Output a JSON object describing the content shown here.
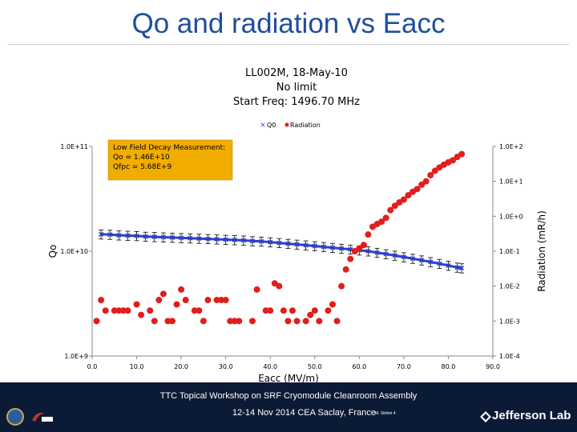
{
  "slide": {
    "title": "Qo and radiation vs Eacc",
    "footer_line1": "TTC Topical Workshop on SRF Cryomodule Cleanroom Assembly",
    "footer_line2": "12-14 Nov 2014 CEA Saclay, France",
    "footer_author": "M. Stirbet 4",
    "footer_brand": "Jefferson Lab"
  },
  "chart_data": {
    "type": "scatter",
    "title_lines": [
      "LL002M, 18-May-10",
      "No limit",
      "Start Freq: 1496.70 MHz"
    ],
    "xlabel": "Eacc (MV/m)",
    "ylabel_left": "Qo",
    "ylabel_right": "Radiation (mR/h)",
    "x_ticks": [
      "0.0",
      "10.0",
      "20.0",
      "30.0",
      "40.0",
      "50.0",
      "60.0",
      "70.0",
      "80.0",
      "90.0"
    ],
    "xlim": [
      0,
      90
    ],
    "left_axis": {
      "scale": "log",
      "ylim": [
        1000000000.0,
        100000000000.0
      ],
      "ticks": [
        "1.0E+9",
        "1.0E+10",
        "1.0E+11"
      ]
    },
    "right_axis": {
      "scale": "log",
      "ylim": [
        0.0001,
        100
      ],
      "ticks": [
        "1.0E-4",
        "1.0E-3",
        "1.0E-2",
        "1.0E-1",
        "1.0E+0",
        "1.0E+1",
        "1.0E+2"
      ]
    },
    "legend": {
      "position": "top",
      "entries": [
        "Q0",
        "Radiation"
      ]
    },
    "annotation": [
      "Low Field Decay Measurement:",
      "Qo = 1.46E+10",
      "Qfpc = 5.68E+9"
    ],
    "colors": {
      "qo": "#2e3fcc",
      "radiation": "#e01e1e",
      "annotation_bg": "#f0ad00",
      "title": "#1f4e9c"
    },
    "series": [
      {
        "name": "Q0",
        "axis": "left",
        "error_bar_fraction": 0.1,
        "x": [
          2,
          4,
          6,
          8,
          10,
          12,
          14,
          16,
          18,
          20,
          22,
          24,
          26,
          28,
          30,
          32,
          34,
          36,
          38,
          40,
          42,
          44,
          46,
          48,
          50,
          52,
          54,
          56,
          58,
          60,
          62,
          64,
          66,
          68,
          70,
          72,
          74,
          76,
          78,
          80,
          82,
          83
        ],
        "y": [
          14500000000.0,
          14400000000.0,
          14200000000.0,
          14100000000.0,
          14000000000.0,
          13800000000.0,
          13700000000.0,
          13600000000.0,
          13500000000.0,
          13400000000.0,
          13300000000.0,
          13200000000.0,
          13100000000.0,
          13000000000.0,
          12900000000.0,
          12800000000.0,
          12700000000.0,
          12500000000.0,
          12400000000.0,
          12200000000.0,
          12000000000.0,
          11800000000.0,
          11600000000.0,
          11400000000.0,
          11200000000.0,
          11000000000.0,
          10800000000.0,
          10600000000.0,
          10400000000.0,
          10200000000.0,
          10000000000.0,
          9700000000.0,
          9400000000.0,
          9100000000.0,
          8800000000.0,
          8500000000.0,
          8200000000.0,
          7900000000.0,
          7600000000.0,
          7300000000.0,
          7000000000.0,
          6900000000.0
        ]
      },
      {
        "name": "Radiation",
        "axis": "right",
        "x": [
          1,
          2,
          3,
          5,
          6,
          7,
          8,
          10,
          11,
          13,
          14,
          15,
          16,
          17,
          18,
          19,
          20,
          21,
          23,
          24,
          25,
          26,
          28,
          29,
          30,
          31,
          32,
          33,
          36,
          37,
          39,
          40,
          41,
          42,
          43,
          44,
          45,
          46,
          48,
          49,
          50,
          51,
          53,
          54,
          55,
          56,
          57,
          58,
          59,
          60,
          61,
          62,
          63,
          64,
          65,
          66,
          67,
          68,
          69,
          70,
          71,
          72,
          73,
          74,
          75,
          76,
          77,
          78,
          79,
          80,
          81,
          82,
          83
        ],
        "y": [
          0.001,
          0.004,
          0.002,
          0.002,
          0.002,
          0.002,
          0.002,
          0.003,
          0.0015,
          0.002,
          0.001,
          0.004,
          0.006,
          0.001,
          0.001,
          0.003,
          0.008,
          0.004,
          0.002,
          0.002,
          0.001,
          0.004,
          0.004,
          0.004,
          0.004,
          0.001,
          0.001,
          0.001,
          0.001,
          0.008,
          0.002,
          0.002,
          0.012,
          0.01,
          0.002,
          0.001,
          0.002,
          0.001,
          0.001,
          0.0015,
          0.002,
          0.001,
          0.002,
          0.003,
          0.001,
          0.01,
          0.03,
          0.06,
          0.1,
          0.12,
          0.15,
          0.3,
          0.5,
          0.6,
          0.7,
          0.9,
          1.5,
          2,
          2.5,
          3,
          4,
          5,
          6,
          8,
          10,
          15,
          20,
          25,
          30,
          35,
          40,
          50,
          60
        ]
      }
    ]
  }
}
